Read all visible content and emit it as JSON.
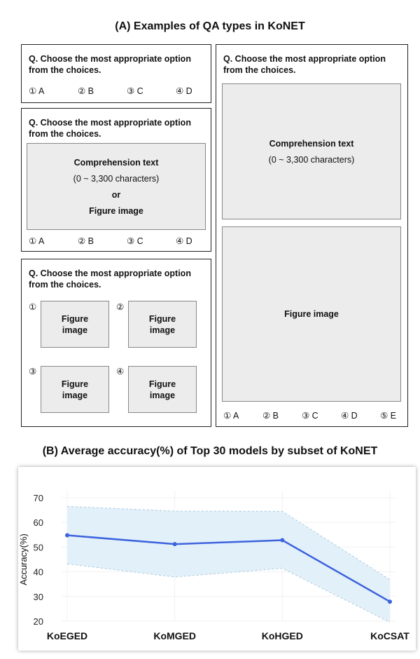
{
  "panel_a": {
    "title": "(A) Examples of QA types in KoNET",
    "question": "Q. Choose the most appropriate option from the choices.",
    "options4": [
      "① A",
      "② B",
      "③ C",
      "④ D"
    ],
    "options5": [
      "① A",
      "② B",
      "③ C",
      "④ D",
      "⑤ E"
    ],
    "comprehension_text": "Comprehension text",
    "char_range": "(0 ~ 3,300 characters)",
    "or": "or",
    "figure_image": "Figure image",
    "choice_markers": [
      "①",
      "②",
      "③",
      "④"
    ]
  },
  "panel_b": {
    "title": "(B) Average accuracy(%) of Top 30 models by subset of KoNET"
  },
  "chart_data": {
    "type": "line",
    "title": "(B) Average accuracy(%) of Top 30 models by subset of KoNET",
    "categories": [
      "KoEGED",
      "KoMGED",
      "KoHGED",
      "KoCSAT"
    ],
    "series": [
      {
        "values": [
          54.8,
          51.2,
          52.8,
          27.9
        ],
        "lower": [
          43.2,
          37.9,
          41.4,
          19.5
        ],
        "upper": [
          66.5,
          64.6,
          64.5,
          36.8
        ],
        "color": "#3e63dd",
        "band_color": "#dfeef9"
      }
    ],
    "xlabel": "",
    "ylabel": "Accuracy(%)",
    "ylim": [
      20,
      70
    ],
    "yticks": [
      20,
      30,
      40,
      50,
      60,
      70
    ],
    "grid": true
  }
}
